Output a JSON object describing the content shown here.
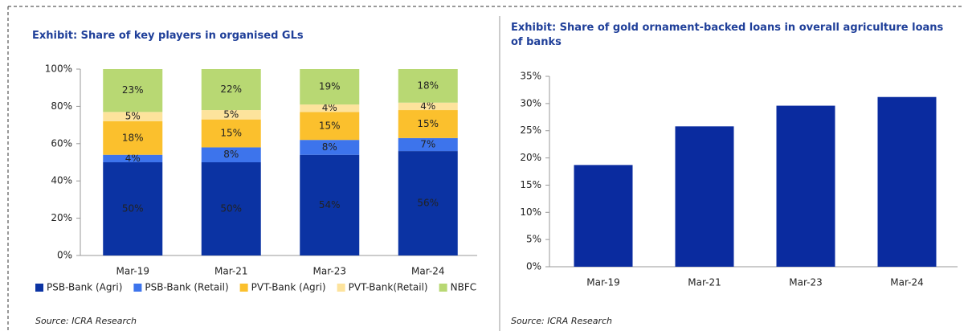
{
  "chart_data": [
    {
      "type": "bar",
      "stacked": true,
      "title": "Exhibit: Share of key players in organised GLs",
      "categories": [
        "Mar-19",
        "Mar-21",
        "Mar-23",
        "Mar-24"
      ],
      "series": [
        {
          "name": "PSB-Bank (Agri)",
          "color": "#0b33a3",
          "values": [
            50,
            50,
            54,
            56
          ],
          "value_labels": [
            "50%",
            "50%",
            "54%",
            "56%"
          ]
        },
        {
          "name": "PSB-Bank (Retail)",
          "color": "#3d74ec",
          "values": [
            4,
            8,
            8,
            7
          ],
          "value_labels": [
            "4%",
            "8%",
            "8%",
            "7%"
          ]
        },
        {
          "name": "PVT-Bank (Agri)",
          "color": "#fbc02d",
          "values": [
            18,
            15,
            15,
            15
          ],
          "value_labels": [
            "18%",
            "15%",
            "15%",
            "15%"
          ]
        },
        {
          "name": "PVT-Bank(Retail)",
          "color": "#fde39c",
          "values": [
            5,
            5,
            4,
            4
          ],
          "value_labels": [
            "5%",
            "5%",
            "4%",
            "4%"
          ]
        },
        {
          "name": "NBFC",
          "color": "#b8d873",
          "values": [
            23,
            22,
            19,
            18
          ],
          "value_labels": [
            "23%",
            "22%",
            "19%",
            "18%"
          ]
        }
      ],
      "ylim": [
        0,
        100
      ],
      "yticks": [
        {
          "value": 0,
          "label": "0%"
        },
        {
          "value": 20,
          "label": "20%"
        },
        {
          "value": 40,
          "label": "40%"
        },
        {
          "value": 60,
          "label": "60%"
        },
        {
          "value": 80,
          "label": "80%"
        },
        {
          "value": 100,
          "label": "100%"
        }
      ],
      "legend": "bottom",
      "source": "Source: ICRA Research"
    },
    {
      "type": "bar",
      "title": "Exhibit: Share of gold ornament-backed loans in overall agriculture loans of banks",
      "categories": [
        "Mar-19",
        "Mar-21",
        "Mar-23",
        "Mar-24"
      ],
      "values": [
        18.7,
        25.8,
        29.6,
        31.2
      ],
      "color": "#0a2b9f",
      "ylim": [
        0,
        35
      ],
      "yticks": [
        {
          "value": 0,
          "label": "0%"
        },
        {
          "value": 5,
          "label": "5%"
        },
        {
          "value": 10,
          "label": "10%"
        },
        {
          "value": 15,
          "label": "15%"
        },
        {
          "value": 20,
          "label": "20%"
        },
        {
          "value": 25,
          "label": "25%"
        },
        {
          "value": 30,
          "label": "30%"
        },
        {
          "value": 35,
          "label": "35%"
        }
      ],
      "source": "Source: ICRA Research"
    }
  ]
}
